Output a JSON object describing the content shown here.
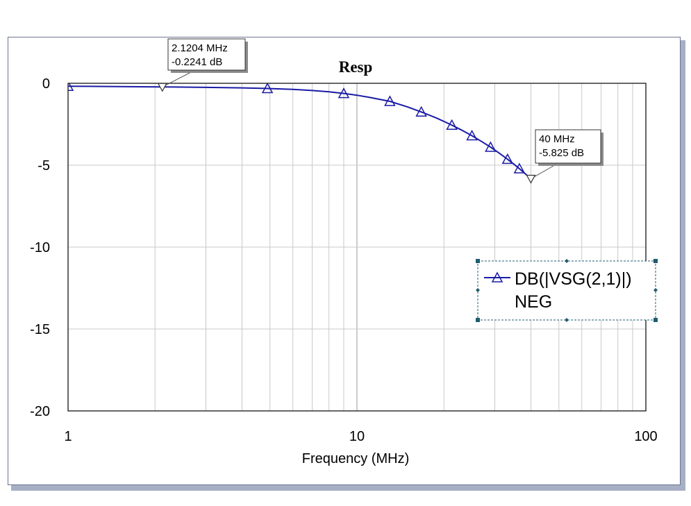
{
  "chart_data": {
    "type": "line",
    "title": "Resp",
    "xlabel": "Frequency (MHz)",
    "ylabel": "",
    "x_scale": "log",
    "xlim": [
      1,
      100
    ],
    "ylim": [
      -20,
      0
    ],
    "grid": true,
    "x_ticks": [
      {
        "value": 1,
        "label": "1"
      },
      {
        "value": 10,
        "label": "10"
      },
      {
        "value": 100,
        "label": "100"
      }
    ],
    "y_ticks": [
      {
        "value": 0,
        "label": "0"
      },
      {
        "value": -5,
        "label": "-5"
      },
      {
        "value": -10,
        "label": "-10"
      },
      {
        "value": -15,
        "label": "-15"
      },
      {
        "value": -20,
        "label": "-20"
      }
    ],
    "series": [
      {
        "name": "DB(|VSG(2,1)|)",
        "name_line2": "NEG",
        "color": "#1a1aa6",
        "marker": "triangle-up",
        "x": [
          1,
          2.1204,
          3,
          4,
          5,
          6,
          7,
          8,
          9,
          10,
          11,
          13,
          15,
          17,
          19,
          21,
          23,
          25,
          27,
          29,
          31,
          33,
          35,
          37,
          40
        ],
        "y": [
          -0.18,
          -0.22,
          -0.25,
          -0.28,
          -0.32,
          -0.37,
          -0.44,
          -0.52,
          -0.62,
          -0.73,
          -0.85,
          -1.1,
          -1.45,
          -1.8,
          -2.15,
          -2.5,
          -2.85,
          -3.2,
          -3.55,
          -3.9,
          -4.25,
          -4.6,
          -4.95,
          -5.3,
          -5.825
        ],
        "marker_x": [
          1,
          4.9,
          9,
          13,
          16.7,
          21.3,
          25,
          29,
          33.2,
          36.5
        ]
      }
    ],
    "markers": [
      {
        "x": 2.1204,
        "y": -0.2241,
        "label_freq": "2.1204 MHz",
        "label_db": "-0.2241 dB"
      },
      {
        "x": 40,
        "y": -5.825,
        "label_freq": "40 MHz",
        "label_db": "-5.825 dB"
      }
    ],
    "legend": {
      "position": "right"
    }
  }
}
